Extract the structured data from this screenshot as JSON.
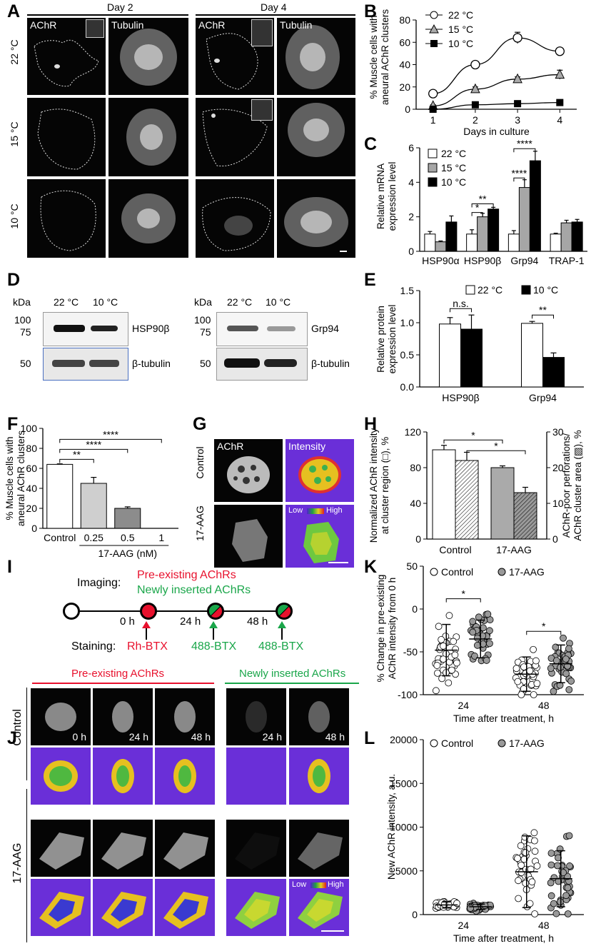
{
  "panels": {
    "A": "A",
    "B": "B",
    "C": "C",
    "D": "D",
    "E": "E",
    "F": "F",
    "G": "G",
    "H": "H",
    "I": "I",
    "J": "J",
    "K": "K",
    "L": "L"
  },
  "panel_a": {
    "day2": "Day 2",
    "day4": "Day 4",
    "achr": "AChR",
    "tubulin": "Tubulin",
    "rows": [
      "22 °C",
      "15 °C",
      "10 °C"
    ]
  },
  "panel_d": {
    "kda": "kDa",
    "left_lanes": [
      "22 °C",
      "10 °C"
    ],
    "right_lanes": [
      "22 °C",
      "10 °C"
    ],
    "markers_top": [
      "100",
      "75"
    ],
    "marker_bottom": "50",
    "left_protein": "HSP90β",
    "right_protein": "Grp94",
    "loading": "β-tubulin"
  },
  "panel_g": {
    "achr": "AChR",
    "intensity": "Intensity",
    "rows": [
      "Control",
      "17-AAG"
    ],
    "low": "Low",
    "high": "High"
  },
  "panel_i": {
    "imaging": "Imaging:",
    "pre": "Pre-existing AChRs",
    "new": "Newly inserted AChRs",
    "times": [
      "0 h",
      "24 h",
      "48 h"
    ],
    "staining": "Staining:",
    "stains": [
      "Rh-BTX",
      "488-BTX",
      "488-BTX"
    ],
    "colors": {
      "red": "#e8112d",
      "green": "#1aa64a"
    }
  },
  "panel_j": {
    "pre": "Pre-existing AChRs",
    "new": "Newly inserted AChRs",
    "rows": [
      "Control",
      "17-AAG"
    ],
    "times": [
      "0 h",
      "24 h",
      "48 h",
      "24 h",
      "48 h"
    ],
    "low": "Low",
    "high": "High"
  },
  "chart_data": [
    {
      "panel": "B",
      "type": "line",
      "xlabel": "Days in culture",
      "ylabel": "% Muscle cells with aneural AChR clusters",
      "x": [
        1,
        2,
        3,
        4
      ],
      "xlim": [
        0.6,
        4.4
      ],
      "ylim": [
        0,
        80
      ],
      "yticks": [
        0,
        20,
        40,
        60,
        80
      ],
      "legend": "top-left",
      "series": [
        {
          "name": "22 °C",
          "marker": "circle",
          "values": [
            14,
            40,
            64,
            52
          ],
          "err": [
            2,
            2,
            5,
            3
          ]
        },
        {
          "name": "15 °C",
          "marker": "triangle",
          "values": [
            3,
            18,
            27,
            31
          ],
          "err": [
            1,
            2,
            2,
            4
          ]
        },
        {
          "name": "10 °C",
          "marker": "square",
          "values": [
            0,
            4,
            5,
            6
          ],
          "err": [
            0.5,
            1,
            1,
            1
          ]
        }
      ]
    },
    {
      "panel": "C",
      "type": "bar",
      "ylabel": "Relative mRNA expression level",
      "categories": [
        "HSP90α",
        "HSP90β",
        "Grp94",
        "TRAP-1"
      ],
      "ylim": [
        0,
        6
      ],
      "yticks": [
        0,
        2,
        4,
        6
      ],
      "legend": "top-left",
      "series": [
        {
          "name": "22 °C",
          "color": "#ffffff",
          "values": [
            1.0,
            1.0,
            1.0,
            1.0
          ],
          "err": [
            0.15,
            0.25,
            0.2,
            0.05
          ]
        },
        {
          "name": "15 °C",
          "color": "#a6a6a6",
          "values": [
            0.55,
            2.0,
            3.7,
            1.65
          ],
          "err": [
            0.05,
            0.2,
            0.45,
            0.15
          ]
        },
        {
          "name": "10 °C",
          "color": "#000000",
          "values": [
            1.7,
            2.45,
            5.25,
            1.7
          ],
          "err": [
            0.35,
            0.1,
            0.55,
            0.15
          ]
        }
      ],
      "annotations": [
        "*",
        "**",
        "****",
        "****"
      ]
    },
    {
      "panel": "E",
      "type": "bar",
      "ylabel": "Relative protein expression level",
      "categories": [
        "HSP90β",
        "Grp94"
      ],
      "ylim": [
        0,
        1.5
      ],
      "yticks": [
        0,
        0.5,
        1.0,
        1.5
      ],
      "legend": "top-center",
      "series": [
        {
          "name": "22 °C",
          "color": "#ffffff",
          "values": [
            0.98,
            0.99
          ],
          "err": [
            0.1,
            0.03
          ]
        },
        {
          "name": "10 °C",
          "color": "#000000",
          "values": [
            0.9,
            0.46
          ],
          "err": [
            0.22,
            0.07
          ]
        }
      ],
      "annotations": [
        "n.s.",
        "**"
      ]
    },
    {
      "panel": "F",
      "type": "bar",
      "ylabel": "% Muscle cells with aneural AChR clusters",
      "xlabel": "17-AAG (nM)",
      "categories": [
        "Control",
        "0.25",
        "0.5",
        "1"
      ],
      "values": [
        64,
        45,
        20,
        0
      ],
      "err": [
        0.5,
        6,
        1.5,
        0
      ],
      "ylim": [
        0,
        100
      ],
      "yticks": [
        0,
        20,
        40,
        60,
        80,
        100
      ],
      "annotations": [
        "**",
        "****",
        "****"
      ]
    },
    {
      "panel": "H",
      "type": "bar",
      "ylabel_left": "Normalized AChR intensity at cluster region (□), %",
      "ylabel_right": "AChR-poor perforations/ AChR cluster area (▨), %",
      "categories": [
        "Control",
        "17-AAG"
      ],
      "intensity": [
        100,
        80
      ],
      "intensity_err": [
        5,
        2
      ],
      "perforation": [
        22,
        13
      ],
      "perforation_err": [
        2.3,
        1.5
      ],
      "ylim_left": [
        0,
        120
      ],
      "yticks_left": [
        0,
        40,
        80,
        120
      ],
      "ylim_right": [
        0,
        30
      ],
      "yticks_right": [
        0,
        10,
        20,
        30
      ],
      "annotations": [
        "*",
        "*"
      ]
    },
    {
      "panel": "K",
      "type": "scatter",
      "ylabel": "% Change in pre-existing AChR intensity from 0 h",
      "xlabel": "Time after treatment, h",
      "categories": [
        "24",
        "48"
      ],
      "ylim": [
        -100,
        50
      ],
      "yticks": [
        -100,
        -50,
        0,
        50
      ],
      "legend": "top",
      "series": [
        {
          "name": "Control",
          "mean": [
            -48,
            -76
          ],
          "sd": [
            30,
            20
          ]
        },
        {
          "name": "17-AAG",
          "mean": [
            -35,
            -64
          ],
          "sd": [
            22,
            22
          ]
        }
      ],
      "annotations": [
        "*",
        "*"
      ]
    },
    {
      "panel": "L",
      "type": "scatter",
      "ylabel": "New AChR intensity, a.u.",
      "xlabel": "Time after treatment, h",
      "categories": [
        "24",
        "48"
      ],
      "ylim": [
        0,
        20000
      ],
      "yticks": [
        0,
        5000,
        10000,
        15000,
        20000
      ],
      "legend": "top",
      "series": [
        {
          "name": "Control",
          "mean": [
            1100,
            4900
          ],
          "sd": [
            350,
            4100
          ]
        },
        {
          "name": "17-AAG",
          "mean": [
            900,
            4100
          ],
          "sd": [
            300,
            3200
          ]
        }
      ]
    }
  ]
}
